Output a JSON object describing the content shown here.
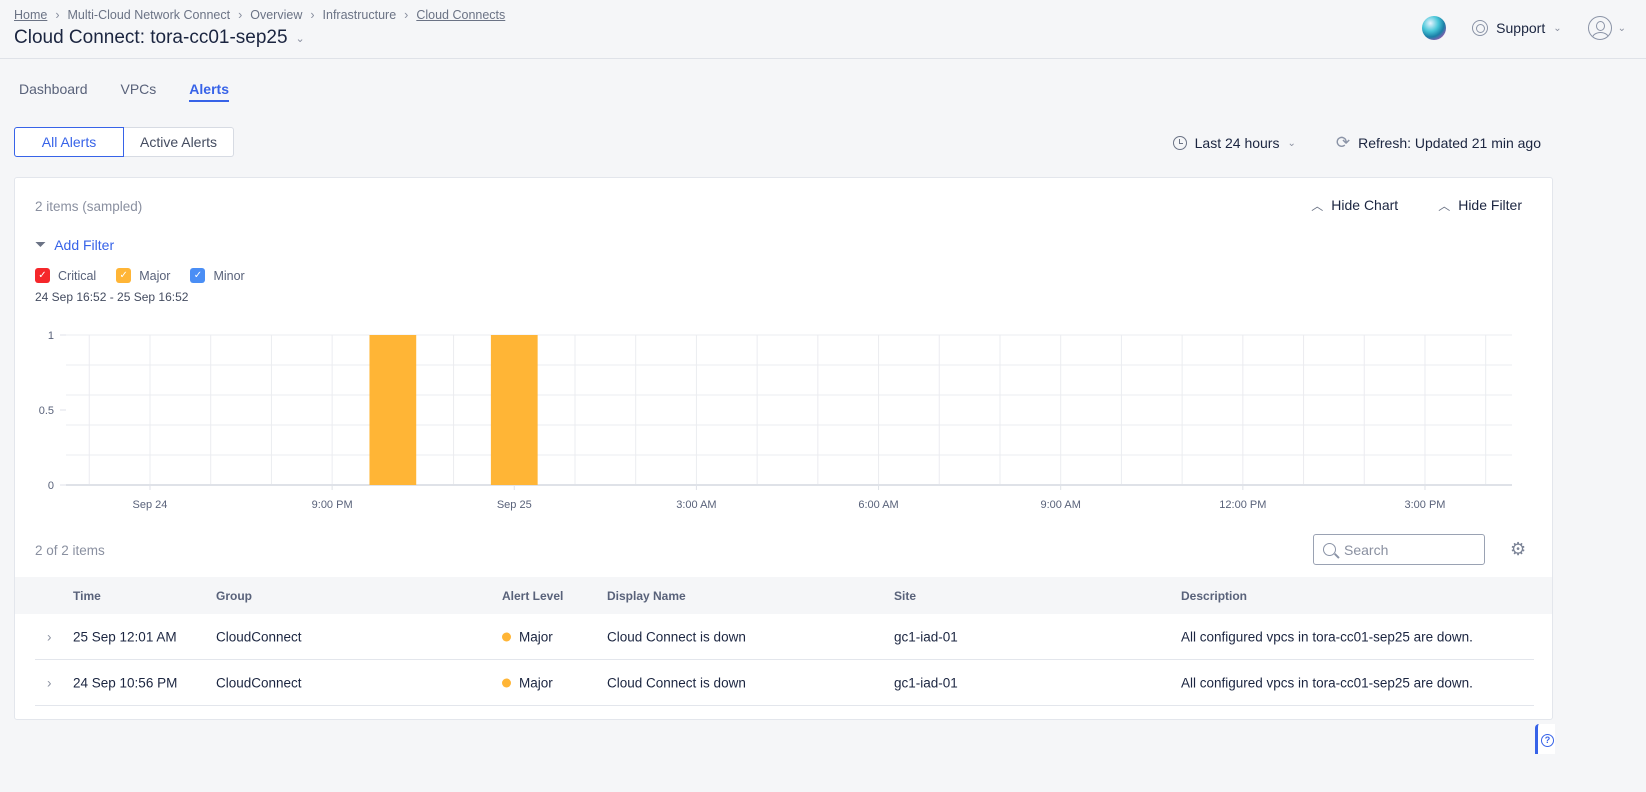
{
  "breadcrumb": [
    "Home",
    "Multi-Cloud Network Connect",
    "Overview",
    "Infrastructure",
    "Cloud Connects"
  ],
  "title": "Cloud Connect: tora-cc01-sep25",
  "header": {
    "support": "Support"
  },
  "tabs": [
    "Dashboard",
    "VPCs",
    "Alerts"
  ],
  "active_tab": "Alerts",
  "segments": [
    "All Alerts",
    "Active Alerts"
  ],
  "toolbar": {
    "time_range": "Last 24 hours",
    "refresh": "Refresh: Updated 21 min ago"
  },
  "panel": {
    "sampled": "2 items (sampled)",
    "hide_chart": "Hide Chart",
    "hide_filter": "Hide Filter",
    "add_filter": "Add Filter",
    "legend": [
      {
        "label": "Critical",
        "color": "#f5272b"
      },
      {
        "label": "Major",
        "color": "#ffb536"
      },
      {
        "label": "Minor",
        "color": "#4a8ef5"
      }
    ],
    "range": "24 Sep 16:52 - 25 Sep 16:52",
    "count": "2 of 2 items",
    "search_placeholder": "Search"
  },
  "chart_data": {
    "type": "bar",
    "ylim": [
      0,
      1
    ],
    "yticks": [
      "0",
      "0.5",
      "1"
    ],
    "xticks": [
      {
        "time": "24 Sep 18:00",
        "label": "Sep 24"
      },
      {
        "time": "24 Sep 21:00",
        "label": "9:00 PM"
      },
      {
        "time": "25 Sep 00:00",
        "label": "Sep 25"
      },
      {
        "time": "25 Sep 03:00",
        "label": "3:00 AM"
      },
      {
        "time": "25 Sep 06:00",
        "label": "6:00 AM"
      },
      {
        "time": "25 Sep 09:00",
        "label": "9:00 AM"
      },
      {
        "time": "25 Sep 12:00",
        "label": "12:00 PM"
      },
      {
        "time": "25 Sep 15:00",
        "label": "3:00 PM"
      }
    ],
    "xlim": [
      "24 Sep 16:37",
      "25 Sep 16:26"
    ],
    "series": [
      {
        "name": "Major",
        "color": "#ffb536",
        "bars": [
          {
            "time": "24 Sep 22:00",
            "value": 1
          },
          {
            "time": "25 Sep 00:00",
            "value": 1
          }
        ]
      }
    ]
  },
  "table": {
    "columns": [
      "Time",
      "Group",
      "Alert Level",
      "Display Name",
      "Site",
      "Description"
    ],
    "rows": [
      [
        "25 Sep 12:01 AM",
        "CloudConnect",
        "Major",
        "Cloud Connect is down",
        "gc1-iad-01",
        "All configured vpcs in tora-cc01-sep25 are down."
      ],
      [
        "24 Sep 10:56 PM",
        "CloudConnect",
        "Major",
        "Cloud Connect is down",
        "gc1-iad-01",
        "All configured vpcs in tora-cc01-sep25 are down."
      ]
    ]
  }
}
